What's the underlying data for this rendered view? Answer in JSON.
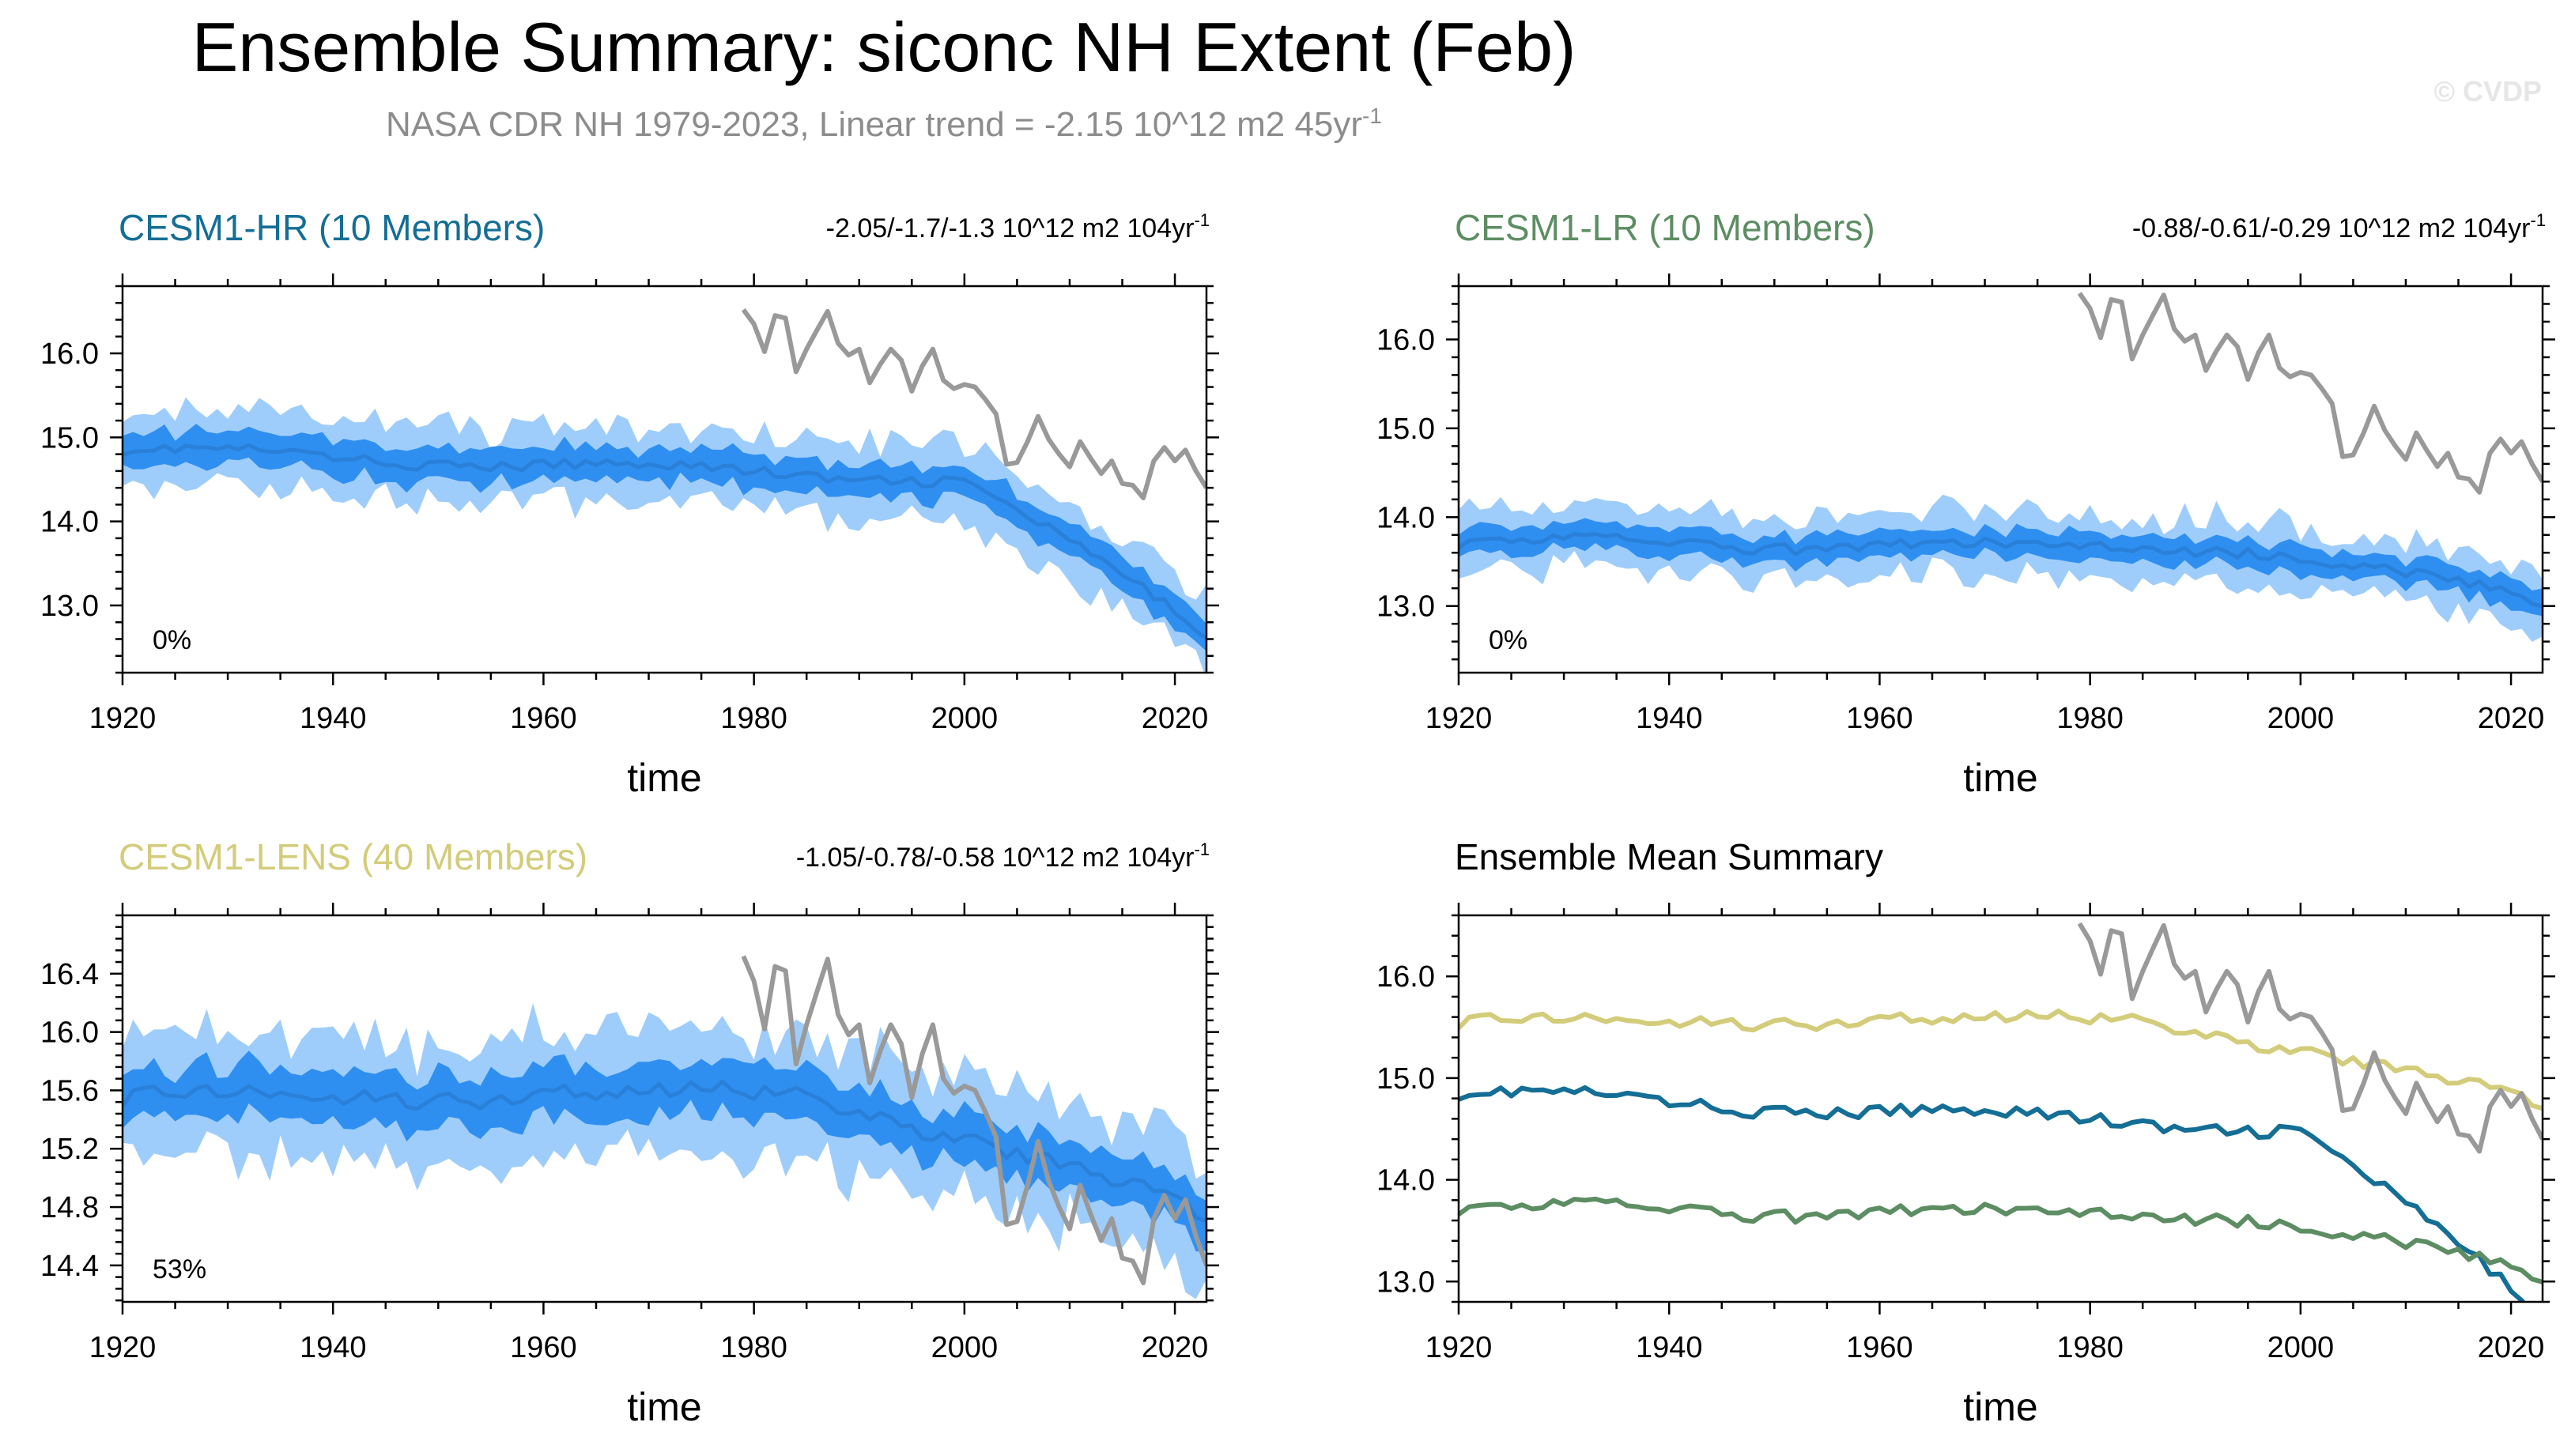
{
  "figure": {
    "title": "Ensemble Summary: siconc NH Extent (Feb)",
    "subtitle": "NASA CDR NH 1979-2023, Linear trend = -2.15 10^12 m2 45yr",
    "subtitle_sup": "-1",
    "copyright": "© CVDP"
  },
  "colors": {
    "band_outer": "#9fcdfb",
    "band_inner": "#2f8ff0",
    "ens_mean": "#2a80d8",
    "obs": "#999999",
    "hr": "#146e96",
    "lr": "#5d8d62",
    "lens": "#d3cc7a",
    "text": "#000000",
    "subtitle": "#8c8c8c"
  },
  "obs_series": {
    "name": "NASA CDR NH",
    "x": [
      1979,
      1980,
      1981,
      1982,
      1983,
      1984,
      1985,
      1986,
      1987,
      1988,
      1989,
      1990,
      1991,
      1992,
      1993,
      1994,
      1995,
      1996,
      1997,
      1998,
      1999,
      2000,
      2001,
      2002,
      2003,
      2004,
      2005,
      2006,
      2007,
      2008,
      2009,
      2010,
      2011,
      2012,
      2013,
      2014,
      2015,
      2016,
      2017,
      2018,
      2019,
      2020,
      2021,
      2022,
      2023
    ],
    "y": [
      16.52,
      16.35,
      16.02,
      16.45,
      16.42,
      15.78,
      16.05,
      16.28,
      16.5,
      16.12,
      15.98,
      16.05,
      15.65,
      15.87,
      16.05,
      15.92,
      15.55,
      15.85,
      16.05,
      15.68,
      15.58,
      15.63,
      15.6,
      15.45,
      15.28,
      14.68,
      14.7,
      14.95,
      15.25,
      14.98,
      14.8,
      14.65,
      14.95,
      14.75,
      14.57,
      14.72,
      14.45,
      14.43,
      14.28,
      14.72,
      14.88,
      14.72,
      14.85,
      14.6,
      14.4
    ]
  },
  "chart_data": [
    {
      "type": "line",
      "id": "hr",
      "title": "CESM1-HR (10 Members)",
      "title_color": "#146e96",
      "trend_text": "-2.05/-1.7/-1.3 10^12 m2 104yr",
      "trend_sup": "-1",
      "rank_text": "0%",
      "xlabel": "time",
      "ylabel": "",
      "xlim": [
        1920,
        2023
      ],
      "ylim": [
        12.2,
        16.8
      ],
      "xticks": [
        1920,
        1940,
        1960,
        1980,
        2000,
        2020
      ],
      "xticklabels": [
        "1920",
        "1940",
        "1960",
        "1980",
        "2000",
        "2020"
      ],
      "yticks": [
        13.0,
        14.0,
        15.0,
        16.0
      ],
      "yticklabels": [
        "13.0",
        "14.0",
        "15.0",
        "16.0"
      ],
      "ens_mean": {
        "base": 14.85,
        "ramp": -0.45,
        "late_start": 2000,
        "late_slope": -0.075,
        "wave": 0.06
      },
      "inner_spread": 0.2,
      "outer_spread": 0.45
    },
    {
      "type": "line",
      "id": "lr",
      "title": "CESM1-LR (10 Members)",
      "title_color": "#5d8d62",
      "trend_text": "-0.88/-0.61/-0.29 10^12 m2 104yr",
      "trend_sup": "-1",
      "rank_text": "0%",
      "xlabel": "time",
      "ylabel": "",
      "xlim": [
        1920,
        2023
      ],
      "ylim": [
        12.25,
        16.6
      ],
      "xticks": [
        1920,
        1940,
        1960,
        1980,
        2000,
        2020
      ],
      "xticklabels": [
        "1920",
        "1940",
        "1960",
        "1980",
        "2000",
        "2020"
      ],
      "yticks": [
        13.0,
        14.0,
        15.0,
        16.0
      ],
      "yticklabels": [
        "13.0",
        "14.0",
        "15.0",
        "16.0"
      ],
      "ens_mean": {
        "base": 13.72,
        "ramp": -0.1,
        "late_start": 1995,
        "late_slope": -0.02,
        "wave": 0.05
      },
      "inner_spread": 0.15,
      "outer_spread": 0.35
    },
    {
      "type": "line",
      "id": "lens",
      "title": "CESM1-LENS (40 Members)",
      "title_color": "#d3cc7a",
      "trend_text": "-1.05/-0.78/-0.58 10^12 m2 104yr",
      "trend_sup": "-1",
      "rank_text": "53%",
      "xlabel": "time",
      "ylabel": "",
      "xlim": [
        1920,
        2023
      ],
      "ylim": [
        14.15,
        16.8
      ],
      "xticks": [
        1920,
        1940,
        1960,
        1980,
        2000,
        2020
      ],
      "xticklabels": [
        "1920",
        "1940",
        "1960",
        "1980",
        "2000",
        "2020"
      ],
      "yticks": [
        14.4,
        14.8,
        15.2,
        15.6,
        16.0,
        16.4
      ],
      "yticklabels": [
        "14.4",
        "14.8",
        "15.2",
        "15.6",
        "16.0",
        "16.4"
      ],
      "ens_mean": {
        "base": 15.55,
        "ramp": 0.05,
        "late_start": 1985,
        "late_slope": -0.022,
        "wave": 0.04
      },
      "inner_spread": 0.17,
      "outer_spread": 0.42
    },
    {
      "type": "line",
      "id": "summary",
      "title": "Ensemble Mean Summary",
      "title_color": "#000000",
      "xlabel": "time",
      "ylabel": "",
      "xlim": [
        1920,
        2023
      ],
      "ylim": [
        12.8,
        16.6
      ],
      "xticks": [
        1920,
        1940,
        1960,
        1980,
        2000,
        2020
      ],
      "xticklabels": [
        "1920",
        "1940",
        "1960",
        "1980",
        "2000",
        "2020"
      ],
      "yticks": [
        13.0,
        14.0,
        15.0,
        16.0
      ],
      "yticklabels": [
        "13.0",
        "14.0",
        "15.0",
        "16.0"
      ],
      "series": [
        {
          "name": "CESM1-LENS",
          "color": "#d3cc7a",
          "ref": "lens"
        },
        {
          "name": "CESM1-HR",
          "color": "#146e96",
          "ref": "hr"
        },
        {
          "name": "CESM1-LR",
          "color": "#5d8d62",
          "ref": "lr"
        },
        {
          "name": "NASA CDR NH",
          "color": "#999999",
          "ref": "obs"
        }
      ]
    }
  ]
}
